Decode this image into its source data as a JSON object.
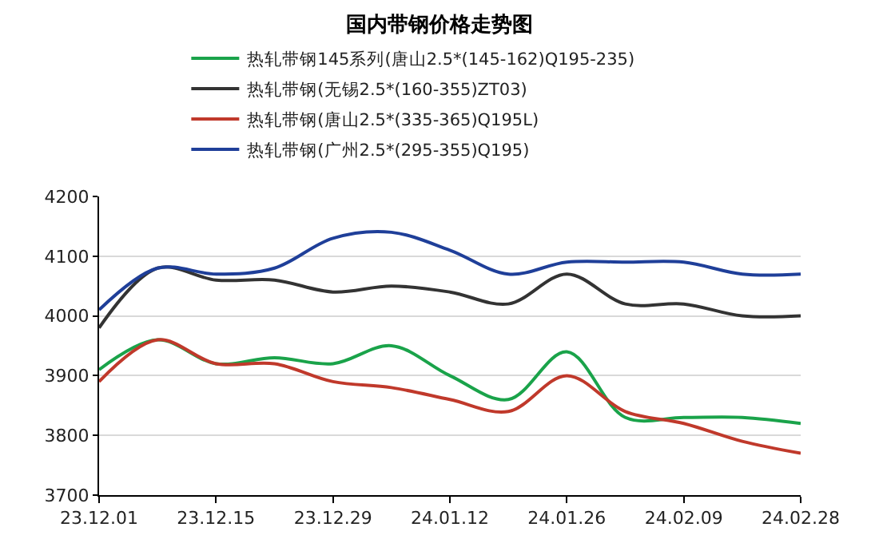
{
  "chart_data": {
    "type": "line",
    "title": "国内带钢价格走势图",
    "categories": [
      "23.12.01",
      null,
      "23.12.15",
      null,
      "23.12.29",
      null,
      "24.01.12",
      null,
      "24.01.26",
      null,
      "24.02.09",
      null,
      "24.02.28"
    ],
    "series": [
      {
        "name": "热轧带钢145系列(唐山2.5*(145-162)Q195-235)",
        "color": "#1aa34a",
        "values": [
          3910,
          3960,
          3920,
          3930,
          3920,
          3950,
          3900,
          3860,
          3940,
          3830,
          3830,
          3830,
          3820
        ]
      },
      {
        "name": "热轧带钢(无锡2.5*(160-355)ZT03)",
        "color": "#333333",
        "values": [
          3980,
          4080,
          4060,
          4060,
          4040,
          4050,
          4040,
          4020,
          4070,
          4020,
          4020,
          4000,
          4000
        ]
      },
      {
        "name": "热轧带钢(唐山2.5*(335-365)Q195L)",
        "color": "#c0392b",
        "values": [
          3890,
          3960,
          3920,
          3920,
          3890,
          3880,
          3860,
          3840,
          3900,
          3840,
          3820,
          3790,
          3770
        ]
      },
      {
        "name": "热轧带钢(广州2.5*(295-355)Q195)",
        "color": "#1f3f99",
        "values": [
          4010,
          4080,
          4070,
          4080,
          4130,
          4140,
          4110,
          4070,
          4090,
          4090,
          4090,
          4070,
          4070
        ]
      }
    ],
    "ylim": [
      3700,
      4200
    ],
    "yticks": [
      3700,
      3800,
      3900,
      4000,
      4100,
      4200
    ],
    "grid": "y",
    "legend": "top",
    "marker": "none",
    "line_style": "solid"
  }
}
